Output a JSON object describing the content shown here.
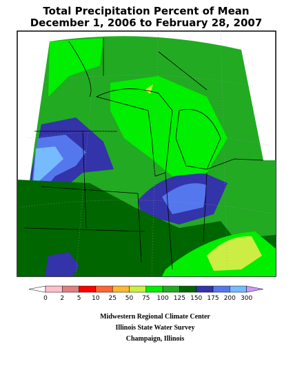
{
  "header": {
    "title": "Total Precipitation Percent of Mean",
    "subtitle": "December 1, 2006 to February 28, 2007"
  },
  "legend": {
    "labels": [
      0,
      2,
      5,
      10,
      25,
      50,
      75,
      100,
      125,
      150,
      175,
      200,
      300
    ],
    "colors": [
      "#ffffff",
      "#ffc0cb",
      "#e08080",
      "#ff0000",
      "#ff6633",
      "#ffb833",
      "#ccee44",
      "#00ee00",
      "#22aa22",
      "#006600",
      "#3333aa",
      "#5577ee",
      "#77bbff",
      "#cc99ff"
    ]
  },
  "credits": [
    "Midwestern Regional Climate Center",
    "Illinois State Water Survey",
    "Champaign, Illinois"
  ]
}
